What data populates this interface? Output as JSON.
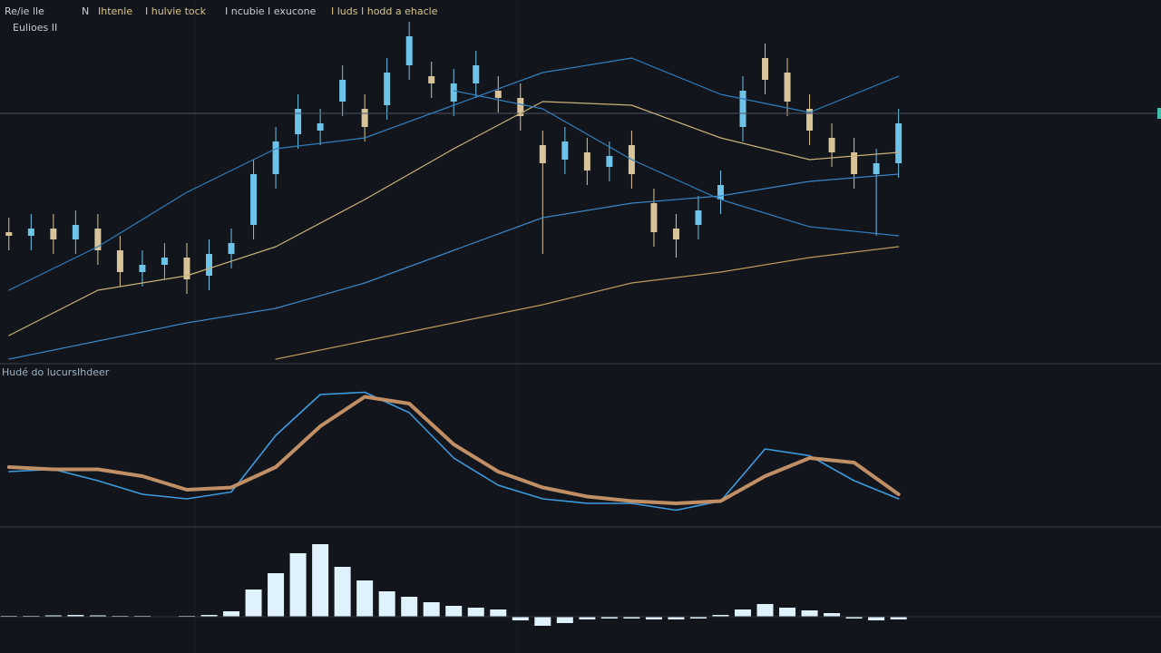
{
  "chart_data": [
    {
      "type": "candlestick",
      "labels": [
        "Re/ie lle",
        "N",
        "Ihtenle",
        "I hulvie tock",
        "I ncubie I exucone",
        "I luds I hodd a ehacle",
        "Eulioes II"
      ],
      "label_colors": [
        "#c9ccd2",
        "#c9ccd2",
        "#d8c48a",
        "#d8c48a",
        "#c9ccd2",
        "#d8c48a",
        "#c9ccd2"
      ],
      "x": [
        0,
        1,
        2,
        3,
        4,
        5,
        6,
        7,
        8,
        9,
        10,
        11,
        12,
        13,
        14,
        15,
        16,
        17,
        18,
        19,
        20,
        21,
        22,
        23,
        24,
        25,
        26,
        27,
        28,
        29,
        30,
        31,
        32,
        33,
        34,
        35,
        36,
        37,
        38,
        39,
        40
      ],
      "open": [
        36,
        35,
        37,
        34,
        37,
        31,
        25,
        27,
        29,
        24,
        30,
        38,
        52,
        63,
        64,
        72,
        70,
        71,
        82,
        79,
        72,
        77,
        75,
        73,
        60,
        56,
        58,
        54,
        60,
        44,
        37,
        38,
        45,
        65,
        84,
        80,
        70,
        62,
        58,
        52,
        55
      ],
      "close": [
        35,
        37,
        34,
        38,
        31,
        25,
        27,
        29,
        23,
        30,
        33,
        52,
        61,
        70,
        66,
        78,
        65,
        80,
        90,
        77,
        77,
        82,
        73,
        68,
        55,
        61,
        53,
        57,
        52,
        36,
        34,
        42,
        49,
        75,
        78,
        72,
        64,
        58,
        52,
        55,
        66
      ],
      "high": [
        40,
        41,
        41,
        42,
        41,
        35,
        31,
        33,
        33,
        34,
        37,
        56,
        65,
        74,
        70,
        82,
        74,
        84,
        94,
        83,
        81,
        86,
        79,
        77,
        64,
        65,
        62,
        61,
        64,
        48,
        41,
        46,
        53,
        79,
        88,
        84,
        74,
        66,
        62,
        59,
        70
      ],
      "low": [
        31,
        31,
        30,
        30,
        27,
        21,
        21,
        23,
        19,
        20,
        26,
        34,
        48,
        59,
        60,
        68,
        61,
        67,
        78,
        73,
        68,
        73,
        69,
        64,
        30,
        52,
        49,
        50,
        48,
        32,
        29,
        34,
        41,
        61,
        74,
        68,
        60,
        54,
        48,
        35,
        51
      ],
      "up_color": "#6ec3e8",
      "down_color": "#d8c49a",
      "xlim": [
        -0.4,
        51.8
      ],
      "ylim": [
        0,
        100
      ],
      "price_line": 68.75,
      "price_line_color": "#4a5566",
      "series": [
        {
          "color": "#2f7fc0",
          "x": [
            0,
            4,
            8,
            12,
            16,
            20,
            24,
            28,
            32,
            36,
            40
          ],
          "values": [
            20,
            32,
            47,
            59,
            62,
            71,
            80,
            84,
            74,
            69,
            79
          ]
        },
        {
          "color": "#c9b27a",
          "x": [
            0,
            4,
            8,
            12,
            16,
            20,
            24,
            28,
            32,
            36,
            40
          ],
          "values": [
            7.5,
            20,
            24,
            32,
            45,
            59,
            72,
            71,
            62,
            56,
            58
          ]
        },
        {
          "color": "#3a86c8",
          "x": [
            0,
            4,
            8,
            12,
            16,
            20,
            24,
            28,
            32,
            36,
            40
          ],
          "values": [
            1,
            6,
            11,
            15,
            22,
            31,
            40,
            44,
            46,
            50,
            52
          ]
        },
        {
          "color": "#2f7fc0",
          "x": [
            0,
            4,
            8,
            12,
            16,
            20,
            24,
            28,
            32,
            36,
            40
          ],
          "values": [
            null,
            null,
            null,
            null,
            null,
            75,
            70,
            56,
            45,
            37.5,
            35
          ]
        },
        {
          "color": "#b99a5a",
          "x": [
            0,
            4,
            8,
            12,
            16,
            20,
            24,
            28,
            32,
            36,
            40
          ],
          "values": [
            null,
            null,
            null,
            1,
            6,
            11,
            16,
            22,
            25,
            29,
            32
          ]
        }
      ]
    },
    {
      "type": "line",
      "labels": [
        "Hudé do lucurs",
        "Ihdeer"
      ],
      "xlim": [
        -0.4,
        51.8
      ],
      "ylim": [
        -1.6,
        2
      ],
      "x": [
        0,
        2,
        4,
        6,
        8,
        10,
        12,
        14,
        16,
        18,
        20,
        22,
        24,
        26,
        28,
        30,
        32,
        34,
        36,
        38,
        40
      ],
      "series": [
        {
          "color": "#3d9be0",
          "width": 1.6,
          "values": [
            -0.4,
            -0.35,
            -0.6,
            -0.9,
            -1.0,
            -0.85,
            0.4,
            1.3,
            1.35,
            0.9,
            -0.1,
            -0.7,
            -1.0,
            -1.1,
            -1.1,
            -1.25,
            -1.05,
            0.1,
            -0.05,
            -0.6,
            -1.0
          ]
        },
        {
          "color": "#c08f66",
          "width": 4,
          "values": [
            -0.3,
            -0.35,
            -0.35,
            -0.5,
            -0.8,
            -0.75,
            -0.3,
            0.6,
            1.25,
            1.1,
            0.2,
            -0.4,
            -0.75,
            -0.95,
            -1.05,
            -1.1,
            -1.05,
            -0.5,
            -0.1,
            -0.2,
            -0.9
          ]
        }
      ]
    },
    {
      "type": "histogram",
      "xlim": [
        -0.4,
        51.8
      ],
      "ylim": [
        -3,
        9
      ],
      "color": "#dff2fb",
      "x": [
        0,
        1,
        2,
        3,
        4,
        5,
        6,
        7,
        8,
        9,
        10,
        11,
        12,
        13,
        14,
        15,
        16,
        17,
        18,
        19,
        20,
        21,
        22,
        23,
        24,
        25,
        26,
        27,
        28,
        29,
        30,
        31,
        32,
        33,
        34,
        35,
        36,
        37,
        38,
        39,
        40
      ],
      "values": [
        0.1,
        0.1,
        0.15,
        0.2,
        0.15,
        0.1,
        0.1,
        0.05,
        0.1,
        0.2,
        0.6,
        3.0,
        4.8,
        7.0,
        8.0,
        5.5,
        4.0,
        2.8,
        2.2,
        1.6,
        1.2,
        1.0,
        0.8,
        -0.4,
        -1.0,
        -0.7,
        -0.3,
        -0.2,
        -0.2,
        -0.3,
        -0.3,
        -0.2,
        0.2,
        0.8,
        1.4,
        1.0,
        0.7,
        0.4,
        -0.2,
        -0.4,
        -0.3
      ]
    }
  ]
}
